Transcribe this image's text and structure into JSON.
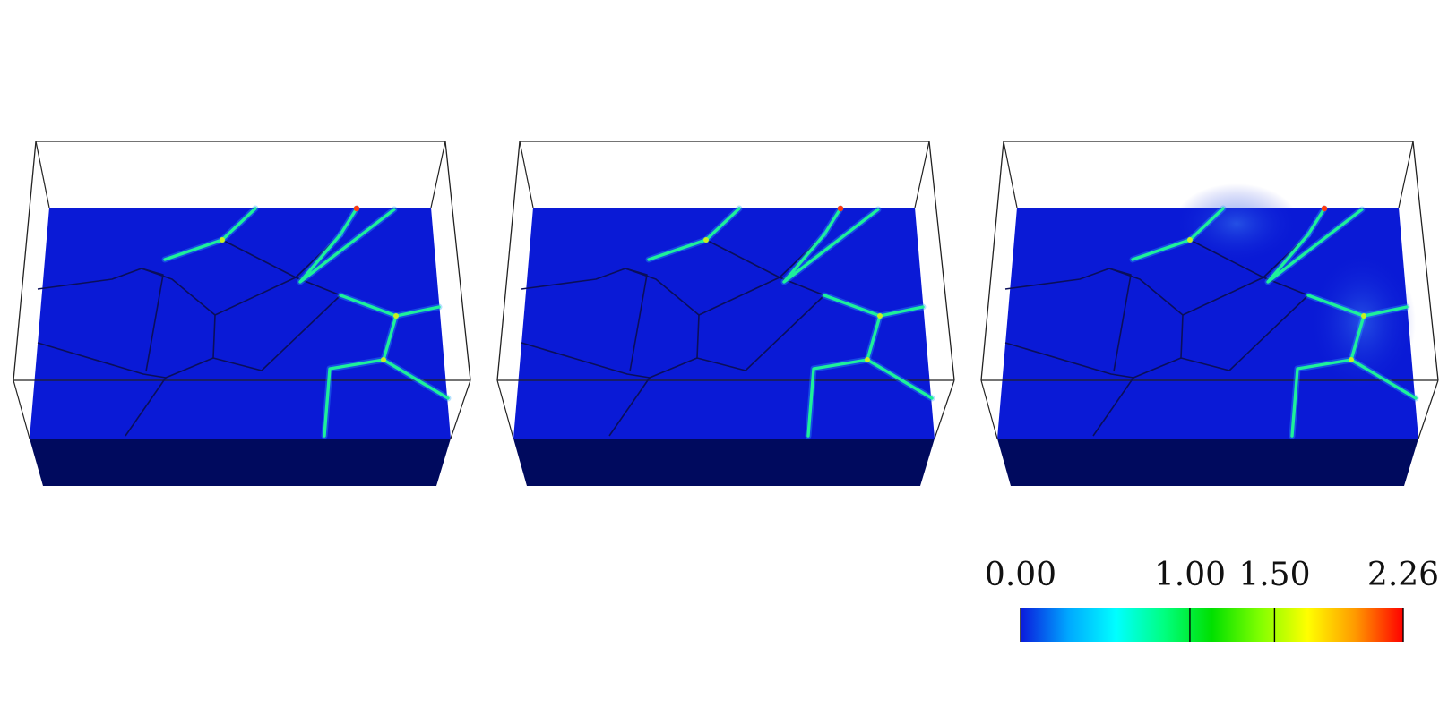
{
  "panels": [
    {
      "id": "panel-1"
    },
    {
      "id": "panel-2"
    },
    {
      "id": "panel-3"
    }
  ],
  "colors": {
    "background": "#ffffff",
    "top_face": "#0a1ad6",
    "front_face": "#000a5e",
    "outline": "#222222",
    "boundary_line": "#0a0f5a"
  },
  "colorbar": {
    "min": 0.0,
    "max": 2.26,
    "ticks": [
      "0.00",
      "1.00",
      "1.50",
      "2.26"
    ],
    "tick_values": [
      0.0,
      1.0,
      1.5,
      2.26
    ],
    "colormap": [
      "#0a1adc",
      "#00a8ff",
      "#00ffff",
      "#00ff80",
      "#00e000",
      "#80ff00",
      "#ffff00",
      "#ff9900",
      "#ff0000"
    ]
  }
}
